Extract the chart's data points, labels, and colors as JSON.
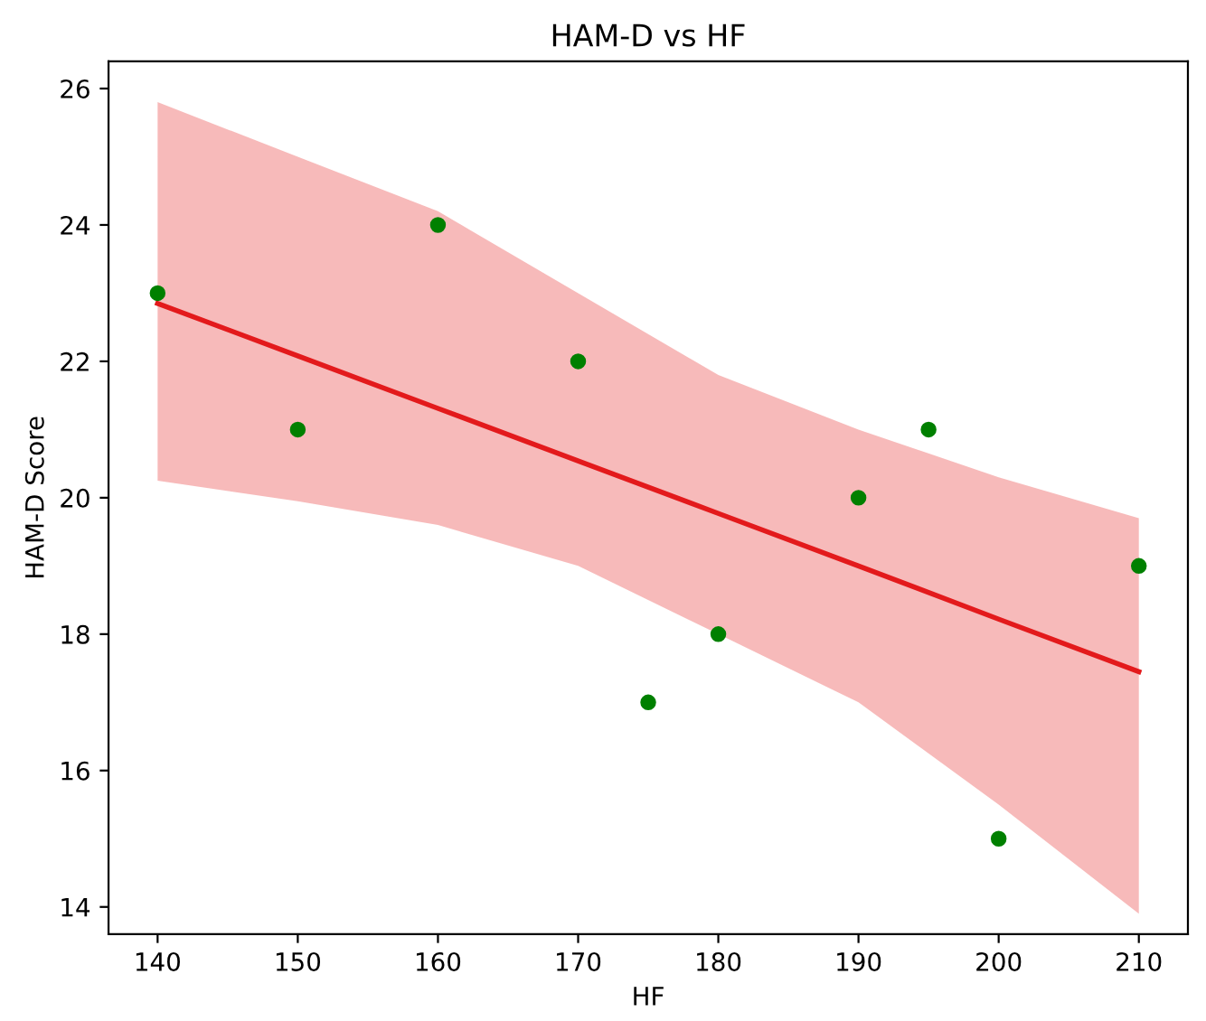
{
  "chart_data": {
    "type": "scatter",
    "title": "HAM-D vs HF",
    "xlabel": "HF",
    "ylabel": "HAM-D Score",
    "series": [
      {
        "marker": "circle",
        "color": "#008000",
        "x": [
          140,
          150,
          160,
          170,
          175,
          180,
          190,
          195,
          200,
          210
        ],
        "values": [
          23,
          21,
          24,
          22,
          17,
          18,
          20,
          21,
          15,
          19
        ]
      },
      {
        "type": "line",
        "marker": "none",
        "color": "#e31a1c",
        "x": [
          140,
          150,
          160,
          170,
          180,
          190,
          200,
          210
        ],
        "values": [
          22.85,
          22.08,
          21.31,
          20.54,
          19.77,
          19.0,
          18.22,
          17.45
        ],
        "lower": [
          20.25,
          19.95,
          19.6,
          19.0,
          18.0,
          17.0,
          15.5,
          13.9
        ],
        "upper": [
          25.8,
          25.0,
          24.2,
          23.0,
          21.8,
          21.0,
          20.3,
          19.7
        ]
      }
    ],
    "line_style": "solid",
    "xlim": [
      136.5,
      213.5
    ],
    "ylim": [
      13.6,
      26.4
    ],
    "xticks": [
      140,
      150,
      160,
      170,
      180,
      190,
      200,
      210
    ],
    "yticks": [
      14,
      16,
      18,
      20,
      22,
      24,
      26
    ],
    "grid": false
  }
}
